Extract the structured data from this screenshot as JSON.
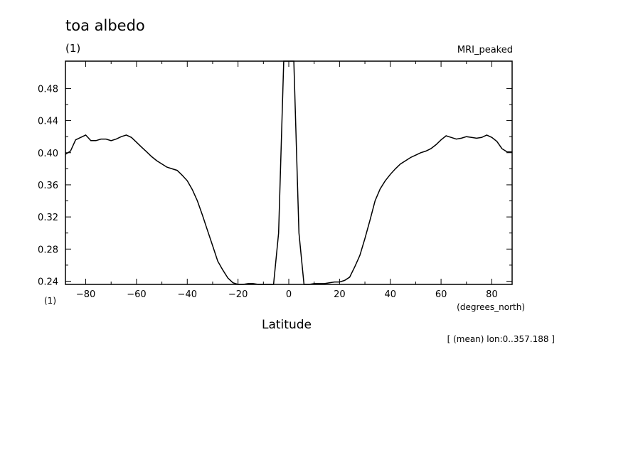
{
  "header": {
    "title": "toa albedo",
    "units": "(1)",
    "model": "MRI_peaked"
  },
  "axes": {
    "y_units": "(1)",
    "x_units": "(degrees_north)",
    "x_label": "Latitude"
  },
  "footer": {
    "note": "[ (mean) lon:0..357.188 ]"
  },
  "chart_data": {
    "type": "line",
    "title": "toa albedo",
    "subtitle": "MRI_peaked",
    "xlabel": "Latitude",
    "ylabel": "(1)",
    "xlim": [
      -88,
      88
    ],
    "ylim": [
      0.236,
      0.514
    ],
    "x_ticks": [
      -80,
      -60,
      -40,
      -20,
      0,
      20,
      40,
      60,
      80
    ],
    "y_ticks": [
      0.24,
      0.28,
      0.32,
      0.36,
      0.4,
      0.44,
      0.48
    ],
    "series": [
      {
        "x": [
          -88,
          -86,
          -84,
          -82,
          -80,
          -78,
          -76,
          -74,
          -72,
          -70,
          -68,
          -66,
          -64,
          -62,
          -60,
          -58,
          -56,
          -54,
          -52,
          -50,
          -48,
          -46,
          -44,
          -42,
          -40,
          -38,
          -36,
          -34,
          -32,
          -30,
          -28,
          -26,
          -24,
          -22,
          -20,
          -18,
          -16,
          -14,
          -12,
          -10,
          -8,
          -6,
          -4,
          -2,
          0,
          2,
          4,
          6,
          8,
          10,
          12,
          14,
          16,
          18,
          20,
          22,
          24,
          26,
          28,
          30,
          32,
          34,
          36,
          38,
          40,
          42,
          44,
          46,
          48,
          50,
          52,
          54,
          56,
          58,
          60,
          62,
          64,
          66,
          68,
          70,
          72,
          74,
          76,
          78,
          80,
          82,
          84,
          86,
          88
        ],
        "values": [
          0.398,
          0.402,
          0.416,
          0.419,
          0.422,
          0.415,
          0.415,
          0.417,
          0.417,
          0.415,
          0.417,
          0.42,
          0.422,
          0.419,
          0.413,
          0.407,
          0.401,
          0.395,
          0.39,
          0.386,
          0.382,
          0.38,
          0.378,
          0.372,
          0.365,
          0.354,
          0.34,
          0.322,
          0.303,
          0.284,
          0.265,
          0.254,
          0.244,
          0.238,
          0.236,
          0.236,
          0.237,
          0.237,
          0.236,
          0.236,
          0.236,
          0.236,
          0.3,
          0.514,
          0.514,
          0.514,
          0.3,
          0.236,
          0.236,
          0.237,
          0.237,
          0.237,
          0.238,
          0.239,
          0.239,
          0.241,
          0.245,
          0.258,
          0.272,
          0.293,
          0.316,
          0.34,
          0.355,
          0.365,
          0.373,
          0.38,
          0.386,
          0.39,
          0.394,
          0.397,
          0.4,
          0.402,
          0.405,
          0.41,
          0.416,
          0.421,
          0.419,
          0.417,
          0.418,
          0.42,
          0.419,
          0.418,
          0.419,
          0.422,
          0.419,
          0.414,
          0.405,
          0.401,
          0.401
        ]
      }
    ]
  }
}
